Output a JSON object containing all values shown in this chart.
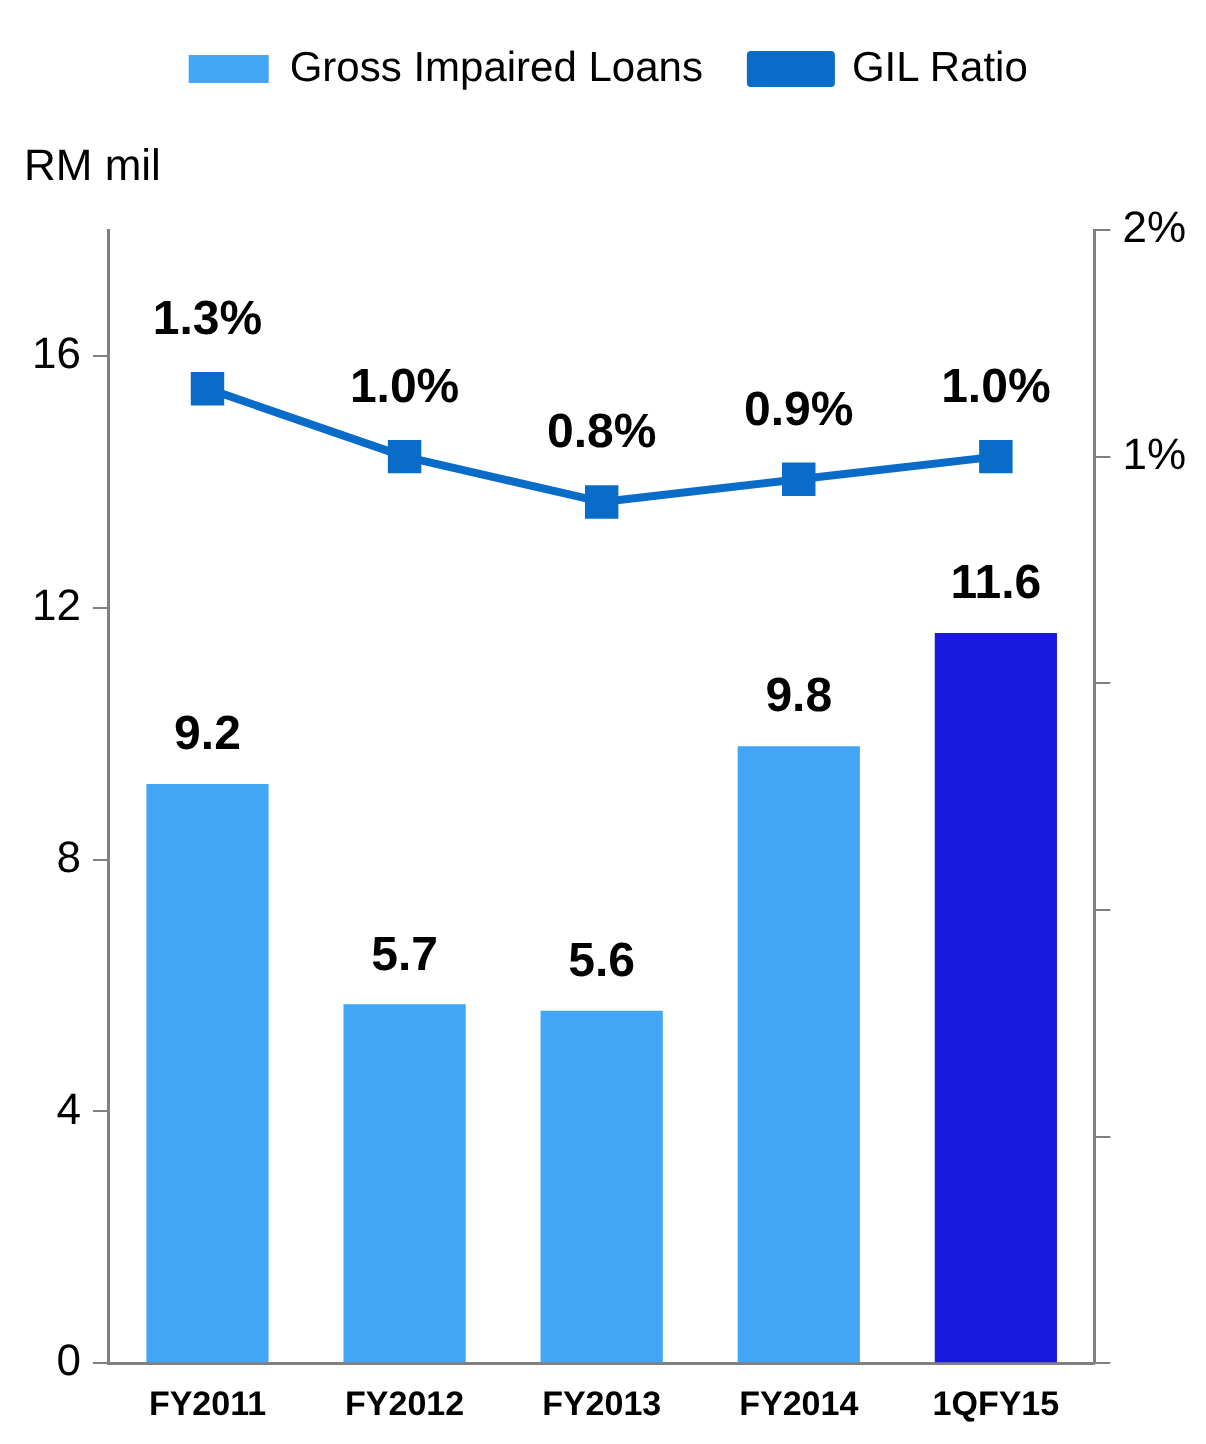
{
  "chart_data": {
    "type": "bar",
    "categories": [
      "FY2011",
      "FY2012",
      "FY2013",
      "FY2014",
      "1QFY15"
    ],
    "ylabel": "RM mil",
    "ylim": [
      0,
      18
    ],
    "yticks": [
      0,
      4,
      8,
      12,
      16
    ],
    "y2lim": [
      -3,
      2
    ],
    "y2ticks": [
      {
        "value": -3,
        "label": null
      },
      {
        "value": -2,
        "label": null
      },
      {
        "value": -1,
        "label": null
      },
      {
        "value": 0,
        "label": null
      },
      {
        "value": 1,
        "label": "1%"
      },
      {
        "value": 2,
        "label": "2%"
      }
    ],
    "grid": false,
    "legend": "top",
    "series": [
      {
        "name": "Gross Impaired Loans",
        "color": "#42a5f5",
        "colors": [
          "#42a5f5",
          "#42a5f5",
          "#42a5f5",
          "#42a5f5",
          "#1a1adf"
        ],
        "values": [
          9.2,
          5.7,
          5.6,
          9.8,
          11.6
        ],
        "value_labels": [
          "9.2",
          "5.7",
          "5.6",
          "9.8",
          "11.6"
        ]
      },
      {
        "name": "GIL Ratio",
        "type": "line",
        "axis": "y2",
        "color": "#0a6cc9",
        "marker": "square",
        "values": [
          1.3,
          1.0,
          0.8,
          0.9,
          1.0
        ],
        "value_labels": [
          "1.3%",
          "1.0%",
          "0.8%",
          "0.9%",
          "1.0%"
        ]
      }
    ]
  }
}
